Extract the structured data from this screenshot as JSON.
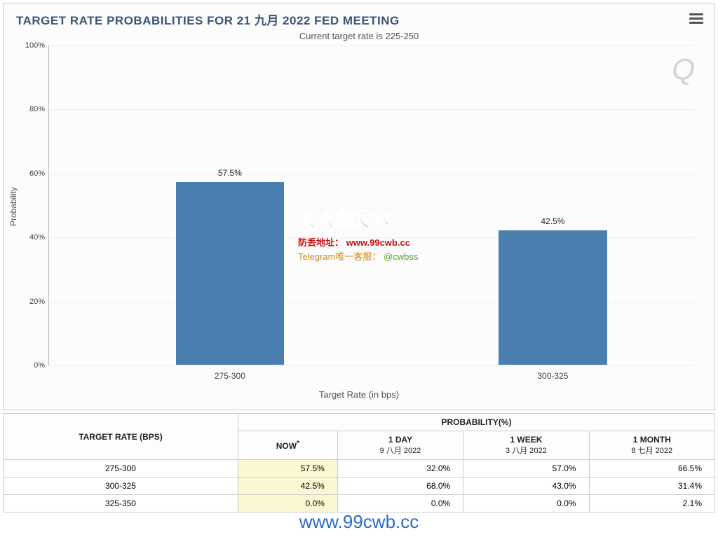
{
  "chart": {
    "title": "TARGET RATE PROBABILITIES FOR 21 九月 2022 FED MEETING",
    "subtitle": "Current target rate is 225-250",
    "ylabel": "Probability",
    "xlabel": "Target Rate (in bps)",
    "ylim": [
      0,
      100
    ],
    "ytick_step": 20,
    "ytick_format_suffix": "%",
    "bar_color": "#4a7fb0",
    "grid_color": "#eeeeee",
    "axis_color": "#bbbbbb",
    "background_color": "#fcfcfc",
    "bars": [
      {
        "category": "275-300",
        "value": 57.5,
        "label": "57.5%",
        "center_pct": 28
      },
      {
        "category": "300-325",
        "value": 42.5,
        "label": "42.5%",
        "center_pct": 78
      }
    ],
    "bar_width_pct": 17
  },
  "watermark": {
    "logo": "Q",
    "title_cn": "久久超文本",
    "line_label": "防丢地址：",
    "line_url": "www.99cwb.cc",
    "tg_label": "Telegram唯一客服：",
    "tg_handle": "@cwbss",
    "bottom": "www.99cwb.cc"
  },
  "table": {
    "col_target": "TARGET RATE (BPS)",
    "col_prob": "PROBABILITY(%)",
    "now_label": "NOW",
    "now_marker": "*",
    "periods": [
      {
        "title": "1 DAY",
        "sub": "9 八月 2022"
      },
      {
        "title": "1 WEEK",
        "sub": "3 八月 2022"
      },
      {
        "title": "1 MONTH",
        "sub": "8 七月 2022"
      }
    ],
    "rows": [
      {
        "rate": "275-300",
        "now": "57.5%",
        "d1": "32.0%",
        "w1": "57.0%",
        "m1": "66.5%"
      },
      {
        "rate": "300-325",
        "now": "42.5%",
        "d1": "68.0%",
        "w1": "43.0%",
        "m1": "31.4%"
      },
      {
        "rate": "325-350",
        "now": "0.0%",
        "d1": "0.0%",
        "w1": "0.0%",
        "m1": "2.1%"
      }
    ]
  }
}
